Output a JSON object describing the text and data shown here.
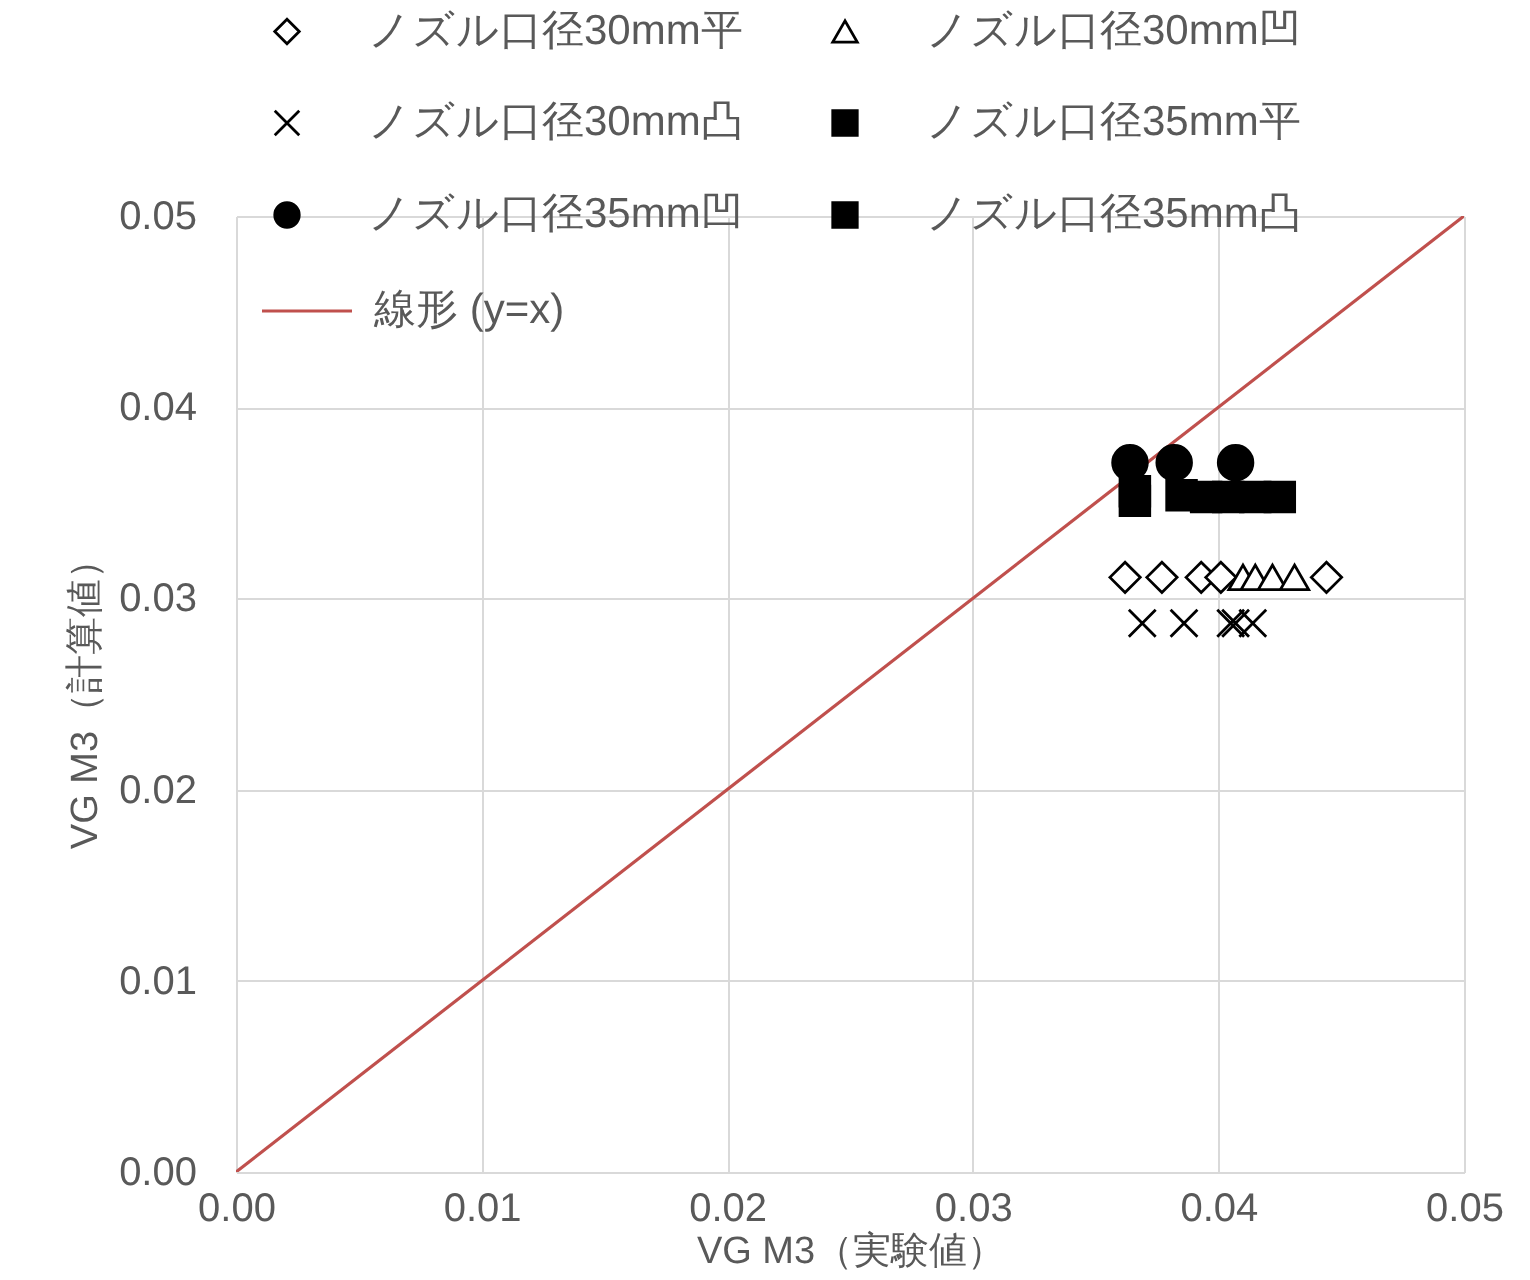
{
  "chart_data": {
    "type": "scatter",
    "xlabel": "VG M3（実験値）",
    "ylabel": "VG M3（計算値）",
    "xlim": [
      0,
      0.05
    ],
    "ylim": [
      0,
      0.05
    ],
    "xticks": [
      {
        "value": 0,
        "label": "0.00"
      },
      0.01,
      0.02,
      0.03,
      0.04,
      0.05
    ],
    "yticks": [
      {
        "value": 0,
        "label": "0.00"
      },
      0.01,
      0.02,
      0.03,
      0.04,
      0.05
    ],
    "grid": true,
    "legend": "top left",
    "series": [
      {
        "name": "ノズル口径30mm平",
        "color": "#000000",
        "marker": "diamond",
        "x": [
          0.0362,
          0.0377,
          0.0393,
          0.0401,
          0.0444
        ],
        "values": [
          0.0311,
          0.0311,
          0.0311,
          0.0311,
          0.0311
        ]
      },
      {
        "name": "ノズル口径30mm凹",
        "color": "#000000",
        "marker": "triangle",
        "x": [
          0.041,
          0.0415,
          0.0422,
          0.0431
        ],
        "values": [
          0.0311,
          0.0311,
          0.0311,
          0.0311
        ]
      },
      {
        "name": "ノズル口径30mm凸",
        "color": "#000000",
        "marker": "cross",
        "x": [
          0.0369,
          0.0386,
          0.0405,
          0.0407,
          0.0414
        ],
        "values": [
          0.0287,
          0.0287,
          0.0287,
          0.0287,
          0.0287
        ]
      },
      {
        "name": "ノズル口径35mm平",
        "color": "#000000",
        "marker": "square",
        "x": [
          0.0366,
          0.0385,
          0.0404,
          0.0425
        ],
        "values": [
          0.0351,
          0.0354,
          0.0353,
          0.0353
        ]
      },
      {
        "name": "ノズル口径35mm凹",
        "color": "#000000",
        "marker": "circle",
        "x": [
          0.0364,
          0.0382,
          0.0407
        ],
        "values": [
          0.0371,
          0.0371,
          0.0371
        ]
      },
      {
        "name": "ノズル口径35mm凸",
        "color": "#000000",
        "marker": "square",
        "x": [
          0.0366,
          0.0395,
          0.0415
        ],
        "values": [
          0.0356,
          0.0353,
          0.0353
        ]
      },
      {
        "name": "線形 (y=x)",
        "type": "line",
        "color": "#c0504d",
        "x": [
          0,
          0.05
        ],
        "values": [
          0,
          0.05
        ]
      }
    ]
  }
}
